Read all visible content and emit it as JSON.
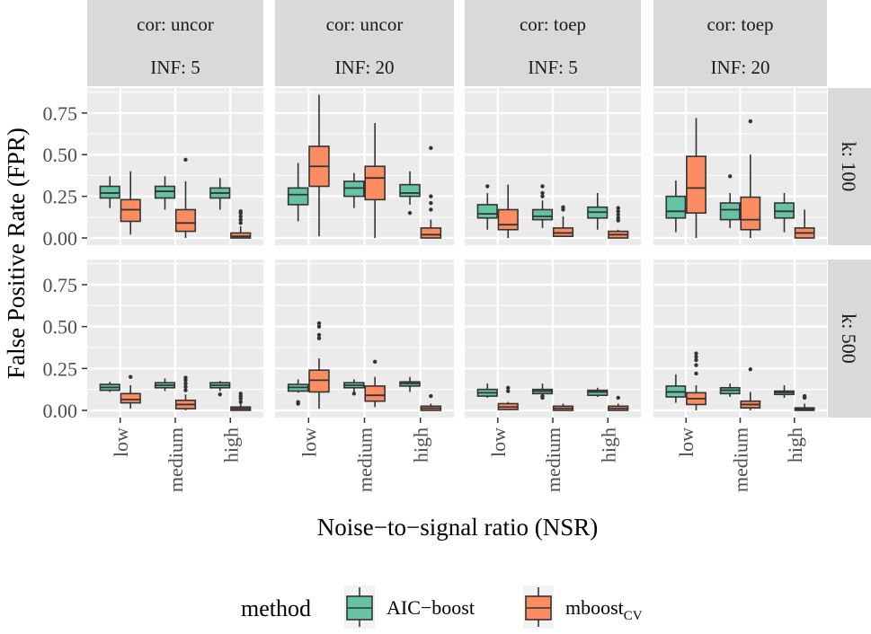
{
  "chart_data": {
    "type": "boxplot",
    "xlabel": "Noise−to−signal ratio (NSR)",
    "ylabel": "False Positive Rate (FPR)",
    "ylim": [
      -0.043,
      0.9
    ],
    "yticks": [
      0,
      0.25,
      0.5,
      0.75
    ],
    "ytick_labels": [
      "0.00",
      "0.25",
      "0.50",
      "0.75"
    ],
    "categories": [
      "low",
      "medium",
      "high"
    ],
    "grid": true,
    "legend": {
      "position": "bottom",
      "title": "method",
      "entries": [
        {
          "name": "AIC−boost",
          "sub": "",
          "color": "#66C2A5"
        },
        {
          "name": "mboost",
          "sub": "CV",
          "color": "#FC8D62"
        }
      ]
    },
    "col_strips": [
      {
        "line1": "cor: uncor",
        "line2": "INF: 5"
      },
      {
        "line1": "cor: uncor",
        "line2": "INF: 20"
      },
      {
        "line1": "cor: toep",
        "line2": "INF: 5"
      },
      {
        "line1": "cor: toep",
        "line2": "INF: 20"
      }
    ],
    "row_strips": [
      "k: 100",
      "k: 500"
    ],
    "stats_format": "[lower_whisker, q1, median, q3, upper_whisker]",
    "panels": [
      [
        [
          {
            "aic": [
              0.18,
              0.24,
              0.27,
              0.31,
              0.37
            ],
            "aic_out": [],
            "mb": [
              0.02,
              0.1,
              0.17,
              0.23,
              0.4
            ],
            "mb_out": []
          },
          {
            "aic": [
              0.17,
              0.24,
              0.28,
              0.31,
              0.37
            ],
            "aic_out": [],
            "mb": [
              0.0,
              0.04,
              0.09,
              0.17,
              0.34
            ],
            "mb_out": [
              0.47
            ]
          },
          {
            "aic": [
              0.17,
              0.24,
              0.27,
              0.3,
              0.36
            ],
            "aic_out": [],
            "mb": [
              0.0,
              0.0,
              0.01,
              0.03,
              0.07
            ],
            "mb_out": [
              0.09,
              0.11,
              0.13,
              0.15,
              0.16
            ]
          }
        ],
        [
          {
            "aic": [
              0.1,
              0.2,
              0.26,
              0.3,
              0.45
            ],
            "aic_out": [],
            "mb": [
              0.01,
              0.31,
              0.43,
              0.55,
              0.86
            ],
            "mb_out": []
          },
          {
            "aic": [
              0.18,
              0.25,
              0.3,
              0.34,
              0.39
            ],
            "aic_out": [],
            "mb": [
              0.0,
              0.23,
              0.36,
              0.43,
              0.69
            ],
            "mb_out": []
          },
          {
            "aic": [
              0.2,
              0.25,
              0.27,
              0.32,
              0.4
            ],
            "aic_out": [
              0.15
            ],
            "mb": [
              0.0,
              0.0,
              0.02,
              0.06,
              0.11
            ],
            "mb_out": [
              0.17,
              0.21,
              0.25,
              0.54
            ]
          }
        ],
        [
          {
            "aic": [
              0.05,
              0.12,
              0.145,
              0.2,
              0.27
            ],
            "aic_out": [
              0.31
            ],
            "mb": [
              0.0,
              0.05,
              0.08,
              0.17,
              0.32
            ],
            "mb_out": []
          },
          {
            "aic": [
              0.06,
              0.11,
              0.13,
              0.17,
              0.225
            ],
            "aic_out": [
              0.25,
              0.27,
              0.31
            ],
            "mb": [
              0.005,
              0.01,
              0.03,
              0.06,
              0.13
            ],
            "mb_out": [
              0.17,
              0.185
            ]
          },
          {
            "aic": [
              0.05,
              0.12,
              0.155,
              0.185,
              0.27
            ],
            "aic_out": [],
            "mb": [
              0.0,
              0.0,
              0.02,
              0.04,
              0.05
            ],
            "mb_out": [
              0.105,
              0.12,
              0.14,
              0.16,
              0.18
            ]
          }
        ],
        [
          {
            "aic": [
              0.035,
              0.12,
              0.16,
              0.25,
              0.345
            ],
            "aic_out": [],
            "mb": [
              0.0,
              0.15,
              0.3,
              0.49,
              0.72
            ],
            "mb_out": []
          },
          {
            "aic": [
              0.06,
              0.11,
              0.17,
              0.21,
              0.27
            ],
            "aic_out": [
              0.37
            ],
            "mb": [
              0.0,
              0.05,
              0.11,
              0.245,
              0.5
            ],
            "mb_out": [
              0.7
            ]
          },
          {
            "aic": [
              0.035,
              0.12,
              0.16,
              0.21,
              0.27
            ],
            "aic_out": [],
            "mb": [
              0.0,
              0.0,
              0.03,
              0.06,
              0.17
            ],
            "mb_out": []
          }
        ]
      ],
      [
        [
          {
            "aic": [
              0.11,
              0.12,
              0.137,
              0.155,
              0.17
            ],
            "aic_out": [],
            "mb": [
              0.01,
              0.045,
              0.065,
              0.1,
              0.15
            ],
            "mb_out": [
              0.2
            ]
          },
          {
            "aic": [
              0.115,
              0.135,
              0.15,
              0.165,
              0.19
            ],
            "aic_out": [],
            "mb": [
              0.0,
              0.01,
              0.035,
              0.06,
              0.095
            ],
            "mb_out": [
              0.12,
              0.14,
              0.16,
              0.18,
              0.195
            ]
          },
          {
            "aic": [
              0.115,
              0.135,
              0.15,
              0.165,
              0.175
            ],
            "aic_out": [
              0.095
            ],
            "mb": [
              0.0,
              0.0,
              0.01,
              0.02,
              0.04
            ],
            "mb_out": [
              0.05,
              0.07,
              0.085,
              0.1
            ]
          }
        ],
        [
          {
            "aic": [
              0.105,
              0.115,
              0.137,
              0.155,
              0.185
            ],
            "aic_out": [
              0.04,
              0.05
            ],
            "mb": [
              0.01,
              0.11,
              0.18,
              0.24,
              0.31
            ],
            "mb_out": [
              0.43,
              0.45,
              0.5,
              0.52
            ]
          },
          {
            "aic": [
              0.11,
              0.135,
              0.15,
              0.165,
              0.185
            ],
            "aic_out": [
              0.1
            ],
            "mb": [
              0.02,
              0.055,
              0.09,
              0.145,
              0.2
            ],
            "mb_out": [
              0.29
            ]
          },
          {
            "aic": [
              0.11,
              0.145,
              0.16,
              0.17,
              0.2
            ],
            "aic_out": [],
            "mb": [
              0.0,
              0.0,
              0.013,
              0.025,
              0.04
            ],
            "mb_out": [
              0.085
            ]
          }
        ],
        [
          {
            "aic": [
              0.075,
              0.085,
              0.105,
              0.125,
              0.16
            ],
            "aic_out": [],
            "mb": [
              0.0,
              0.005,
              0.02,
              0.04,
              0.05
            ],
            "mb_out": [
              0.115,
              0.135
            ]
          },
          {
            "aic": [
              0.085,
              0.1,
              0.115,
              0.125,
              0.16
            ],
            "aic_out": [
              0.075,
              0.085
            ],
            "mb": [
              0.0,
              0.0,
              0.012,
              0.025,
              0.04
            ],
            "mb_out": []
          },
          {
            "aic": [
              0.08,
              0.09,
              0.11,
              0.12,
              0.135
            ],
            "aic_out": [],
            "mb": [
              0.0,
              0.0,
              0.012,
              0.025,
              0.04
            ],
            "mb_out": [
              0.075
            ]
          }
        ],
        [
          {
            "aic": [
              0.045,
              0.08,
              0.11,
              0.145,
              0.215
            ],
            "aic_out": [],
            "mb": [
              0.0,
              0.035,
              0.07,
              0.105,
              0.15
            ],
            "mb_out": [
              0.22,
              0.27,
              0.3,
              0.32,
              0.34
            ]
          },
          {
            "aic": [
              0.08,
              0.1,
              0.12,
              0.135,
              0.16
            ],
            "aic_out": [],
            "mb": [
              0.0,
              0.015,
              0.035,
              0.055,
              0.11
            ],
            "mb_out": [
              0.245
            ]
          },
          {
            "aic": [
              0.075,
              0.095,
              0.107,
              0.115,
              0.15
            ],
            "aic_out": [],
            "mb": [
              0.0,
              0.0,
              0.007,
              0.015,
              0.04
            ],
            "mb_out": [
              0.075,
              0.085
            ]
          }
        ]
      ]
    ]
  }
}
